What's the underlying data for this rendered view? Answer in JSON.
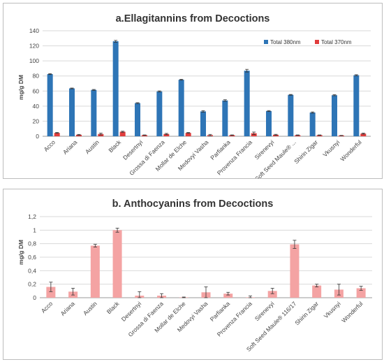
{
  "chart_data": [
    {
      "type": "bar",
      "title": "a.Ellagitannins from Decoctions",
      "ylabel": "mg/g DM",
      "xlabel": "",
      "ylim": [
        0,
        140
      ],
      "yticks": [
        "0",
        "20",
        "40",
        "60",
        "80",
        "100",
        "120",
        "140"
      ],
      "grid": true,
      "legend": "top-right",
      "categories": [
        "Acco",
        "Ariana",
        "Austin",
        "Black",
        "Desertnyi",
        "Grossa di Faenza",
        "Mollar de Elche",
        "Medovyi Vasha",
        "Parfianka",
        "Provenza Francia",
        "Sirenevyi",
        "Soft Seed Maule® ...",
        "Shirin Zigar",
        "Vkusnyi",
        "Wonderful"
      ],
      "series": [
        {
          "name": "Total 380nm",
          "color": "#2e75b6",
          "values": [
            82.5,
            63.5,
            61.5,
            126,
            44,
            59.5,
            75,
            33,
            47.5,
            87,
            33.5,
            55,
            31.5,
            54.5,
            81
          ],
          "errors": [
            0.6,
            0.5,
            0.6,
            1.2,
            0.6,
            0.7,
            0.6,
            1.0,
            1.0,
            1.8,
            0.6,
            0.5,
            0.8,
            0.7,
            0.7
          ]
        },
        {
          "name": "Total 370nm",
          "color": "#e03c3c",
          "values": [
            4.5,
            2,
            3,
            6,
            1.5,
            3,
            4.5,
            1.5,
            1.5,
            4,
            2,
            1.5,
            1.5,
            1,
            3.5
          ],
          "errors": [
            0.5,
            0.5,
            1.2,
            0.7,
            0.3,
            0.8,
            0.5,
            1.0,
            0.3,
            1.6,
            0.6,
            0.3,
            0.3,
            0.2,
            0.7
          ]
        }
      ]
    },
    {
      "type": "bar",
      "title": "b. Anthocyanins from Decoctions",
      "ylabel": "mg/g DM",
      "xlabel": "",
      "ylim": [
        0,
        1.2
      ],
      "yticks": [
        "0",
        "0,2",
        "0,4",
        "0,6",
        "0,8",
        "1",
        "1,2"
      ],
      "grid": true,
      "legend": "none",
      "categories": [
        "Acco",
        "Ariana",
        "Austin",
        "Black",
        "Desertnyi",
        "Grossa di Faenza",
        "Mollar de Elche",
        "Medovyi Vasha",
        "Parfianka",
        "Provenza Francia",
        "Sirenevyi",
        "Soft Seed Maule® 116/17",
        "Shirin Zigar",
        "Vkusnyi",
        "Wonderful"
      ],
      "series": [
        {
          "color": "#f4a3a3",
          "values": [
            0.16,
            0.09,
            0.77,
            1.0,
            0.03,
            0.03,
            0.005,
            0.08,
            0.06,
            0.005,
            0.1,
            0.79,
            0.18,
            0.12,
            0.14
          ],
          "errors": [
            0.07,
            0.05,
            0.02,
            0.03,
            0.06,
            0.03,
            0.005,
            0.08,
            0.02,
            0.02,
            0.04,
            0.06,
            0.02,
            0.08,
            0.03
          ]
        }
      ]
    }
  ]
}
